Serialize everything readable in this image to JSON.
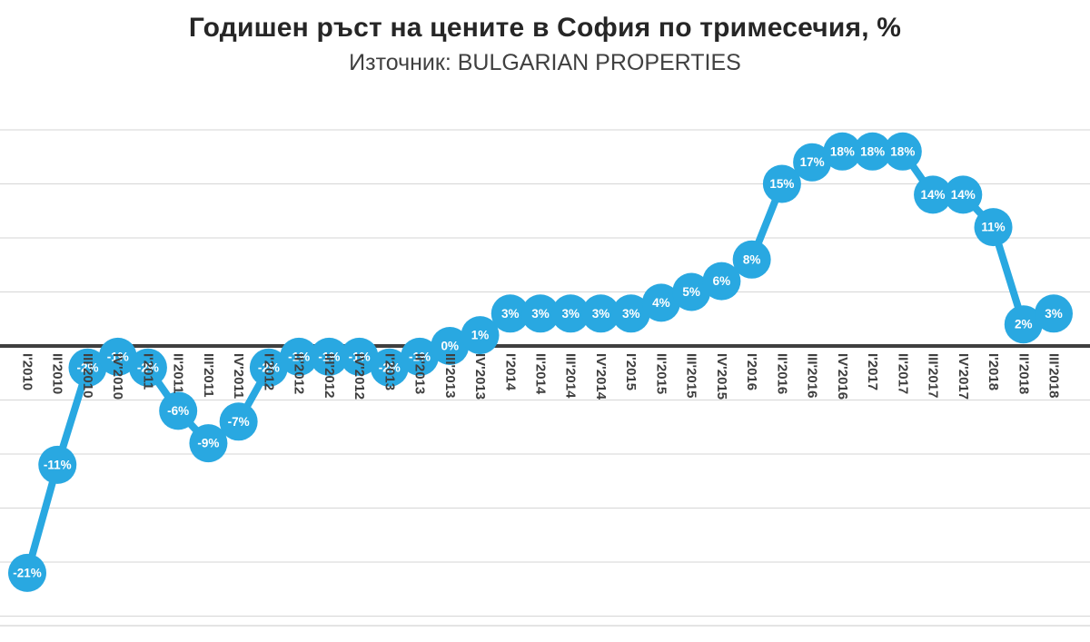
{
  "header": {
    "title": "Годишен ръст на цените в София по тримесечия, %",
    "subtitle": "Източник: BULGARIAN PROPERTIES"
  },
  "chart_data": {
    "type": "line",
    "title": "Годишен ръст на цените в София по тримесечия, %",
    "subtitle": "Източник: BULGARIAN PROPERTIES",
    "categories": [
      "I'2010",
      "II'2010",
      "III'2010",
      "IV'2010",
      "I'2011",
      "II'2011",
      "III'2011",
      "IV'2011",
      "I'2012",
      "II'2012",
      "III'2012",
      "IV'2012",
      "I'2013",
      "II'2013",
      "III'2013",
      "IV'2013",
      "I'2014",
      "II'2014",
      "III'2014",
      "IV'2014",
      "I'2015",
      "II'2015",
      "III'2015",
      "IV'2015",
      "I'2016",
      "II'2016",
      "III'2016",
      "IV'2016",
      "I'2017",
      "II'2017",
      "III'2017",
      "IV'2017",
      "I'2018",
      "II'2018",
      "III'2018"
    ],
    "values": [
      -21,
      -11,
      -2,
      -1,
      -2,
      -6,
      -9,
      -7,
      -2,
      -1,
      -1,
      -1,
      -2,
      -1,
      0,
      1,
      3,
      3,
      3,
      3,
      3,
      4,
      5,
      6,
      8,
      15,
      17,
      18,
      18,
      18,
      14,
      14,
      11,
      2,
      3
    ],
    "point_labels": [
      "-21%",
      "-11%",
      "-2%",
      "-1%",
      "-2%",
      "-6%",
      "-9%",
      "-7%",
      "-2%",
      "-1%",
      "-1%",
      "-1%",
      "-2%",
      "-1%",
      "0%",
      "1%",
      "3%",
      "3%",
      "3%",
      "3%",
      "3%",
      "4%",
      "5%",
      "6%",
      "8%",
      "15%",
      "17%",
      "18%",
      "18%",
      "18%",
      "14%",
      "14%",
      "11%",
      "2%",
      "3%"
    ],
    "xlabel": "",
    "ylabel": "",
    "ylim": [
      -26,
      21
    ],
    "grid": {
      "on": true,
      "max": 20,
      "min": -25,
      "interval": 5
    },
    "legend": "none",
    "marker_radius": 21,
    "line_width": 8,
    "colors": {
      "series": "#29A8E1",
      "point_label_text": "#FFFFFF",
      "gridline": "#D6D6D6",
      "zero_axis": "#3F3F3F",
      "axis_text": "#3F3F3F",
      "plot_border": "#C9C9C9"
    }
  }
}
